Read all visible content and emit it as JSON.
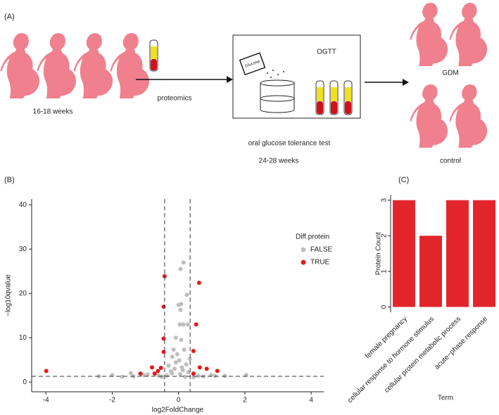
{
  "panel_a": {
    "label": "(A)",
    "early_weeks": "16-18 weeks",
    "method": "proteomics",
    "test_title": "OGTT",
    "bag_label": "Glucose",
    "test_name": "oral glucose tolerance test",
    "late_weeks": "24-28 weeks",
    "group_1": "GDM",
    "group_2": "control"
  },
  "chart_data": [
    {
      "type": "scatter",
      "panel_label": "(B)",
      "xlabel": "log2FoldChange",
      "ylabel": "−log10qvalue",
      "legend_title": "Diff.protein",
      "xlim": [
        -4.43,
        4.38
      ],
      "ylim": [
        -2.2,
        41.3
      ],
      "xticks": [
        -4,
        -2,
        0,
        2,
        4
      ],
      "yticks": [
        0,
        10,
        20,
        30,
        40
      ],
      "vlines": [
        -0.42,
        0.35
      ],
      "hline": 1.3,
      "series": [
        {
          "name": "FALSE",
          "color": "#bebebe",
          "x": [
            0.15,
            0.06,
            0.08,
            0,
            0.06,
            0.25,
            0.04,
            0.15,
            0.28,
            -0.08,
            0.08,
            -0.15,
            0.17,
            -0.19,
            -2.4,
            -2,
            -1.44,
            -1.06,
            -0.3,
            -0.08,
            0.02,
            0.23,
            -0.23,
            0.13,
            0.34,
            -0.04,
            0.98,
            1.4,
            2.04,
            -1.36,
            -0.93,
            -0.12,
            0.1,
            -0.2,
            0.3,
            0.05,
            -0.35,
            0.2,
            0.6,
            -0.6,
            0.75,
            -1.7,
            1.1,
            0.45,
            -0.5
          ],
          "y": [
            27,
            25.5,
            17.6,
            17.4,
            16.3,
            19.7,
            13,
            13,
            13,
            10,
            9.5,
            7.3,
            7.3,
            5.7,
            1.3,
            1.6,
            2,
            1.6,
            3.7,
            4.4,
            4.9,
            4,
            2.4,
            2.7,
            5.2,
            6.3,
            1.6,
            1.4,
            1.6,
            1.3,
            1.7,
            3,
            3.3,
            2,
            2.2,
            1.8,
            1.5,
            1.2,
            1.4,
            1.5,
            1.3,
            1.2,
            1.4,
            1.1,
            1.2
          ]
        },
        {
          "name": "TRUE",
          "color": "#e31a1c",
          "x": [
            -3.99,
            -0.42,
            -0.45,
            0.62,
            0.53,
            -0.45,
            -0.45,
            0.45,
            -0.8,
            -0.62,
            0.85,
            1.17,
            0.64,
            -0.53,
            -1.15,
            -0.72,
            0.45
          ],
          "y": [
            2.5,
            23.9,
            17,
            22.4,
            13,
            9.8,
            6.8,
            7,
            3.3,
            2.5,
            3,
            2.5,
            3.3,
            3.2,
            1.9,
            1.9,
            1.9
          ]
        }
      ]
    },
    {
      "type": "bar",
      "panel_label": "(C)",
      "xlabel": "Term",
      "ylabel": "Protein Count",
      "color": "#e2252b",
      "categories": [
        "female pregnancy",
        "cellular response to hormone stimulus",
        "cellular protein metabolic process",
        "acute−phase response"
      ],
      "values": [
        3,
        2,
        3,
        3
      ],
      "ylim": [
        -0.15,
        3.15
      ],
      "yticks": [
        0,
        1,
        2,
        3
      ]
    }
  ]
}
